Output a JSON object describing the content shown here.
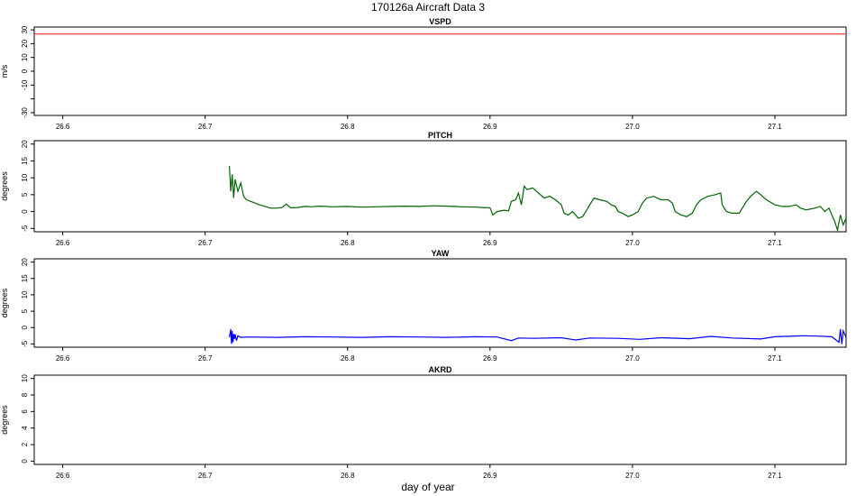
{
  "title": "170126a   Aircraft Data 3",
  "xlabel": "day of year",
  "chart_data": [
    {
      "type": "line",
      "title": "VSPD",
      "ylabel": "m/s",
      "xlim": [
        26.58,
        27.15
      ],
      "ylim": [
        -32,
        32
      ],
      "x_ticks": [
        "26.6",
        "26.7",
        "26.8",
        "26.9",
        "27.0",
        "27.1"
      ],
      "y_ticks": [
        "-30",
        "",
        "-10",
        "0",
        "10",
        "20",
        "30"
      ],
      "series": [
        {
          "color": "#ff2a2a",
          "points": [
            [
              26.58,
              27
            ],
            [
              27.15,
              27
            ]
          ]
        }
      ]
    },
    {
      "type": "line",
      "title": "PITCH",
      "ylabel": "degrees",
      "xlim": [
        26.58,
        27.15
      ],
      "ylim": [
        -6,
        21
      ],
      "x_ticks": [
        "26.6",
        "26.7",
        "26.8",
        "26.9",
        "27.0",
        "27.1"
      ],
      "y_ticks": [
        "-5",
        "0",
        "5",
        "10",
        "15",
        "20"
      ],
      "series": [
        {
          "color": "#006400",
          "points": [
            [
              26.717,
              13.5
            ],
            [
              26.718,
              6
            ],
            [
              26.719,
              11
            ],
            [
              26.72,
              4
            ],
            [
              26.721,
              9.5
            ],
            [
              26.723,
              6
            ],
            [
              26.725,
              8.5
            ],
            [
              26.727,
              4.5
            ],
            [
              26.729,
              3.5
            ],
            [
              26.732,
              3
            ],
            [
              26.735,
              2.5
            ],
            [
              26.738,
              2
            ],
            [
              26.742,
              1.5
            ],
            [
              26.746,
              1
            ],
            [
              26.75,
              1
            ],
            [
              26.754,
              1.2
            ],
            [
              26.757,
              2.2
            ],
            [
              26.76,
              1.1
            ],
            [
              26.765,
              1.2
            ],
            [
              26.77,
              1.5
            ],
            [
              26.775,
              1.4
            ],
            [
              26.78,
              1.6
            ],
            [
              26.79,
              1.4
            ],
            [
              26.8,
              1.5
            ],
            [
              26.81,
              1.3
            ],
            [
              26.82,
              1.4
            ],
            [
              26.83,
              1.5
            ],
            [
              26.84,
              1.6
            ],
            [
              26.85,
              1.5
            ],
            [
              26.86,
              1.7
            ],
            [
              26.87,
              1.6
            ],
            [
              26.88,
              1.4
            ],
            [
              26.89,
              1.3
            ],
            [
              26.895,
              1.2
            ],
            [
              26.9,
              1.1
            ],
            [
              26.902,
              -1
            ],
            [
              26.905,
              0
            ],
            [
              26.91,
              0.4
            ],
            [
              26.913,
              0.2
            ],
            [
              26.915,
              3
            ],
            [
              26.918,
              3.5
            ],
            [
              26.92,
              5.5
            ],
            [
              26.922,
              2
            ],
            [
              26.924,
              7.5
            ],
            [
              26.926,
              6.5
            ],
            [
              26.93,
              7
            ],
            [
              26.934,
              5.5
            ],
            [
              26.938,
              4
            ],
            [
              26.942,
              4.5
            ],
            [
              26.946,
              3.5
            ],
            [
              26.95,
              2
            ],
            [
              26.952,
              -0.5
            ],
            [
              26.955,
              -1
            ],
            [
              26.958,
              0
            ],
            [
              26.96,
              -1
            ],
            [
              26.962,
              -2
            ],
            [
              26.965,
              -1.5
            ],
            [
              26.968,
              0.5
            ],
            [
              26.97,
              2
            ],
            [
              26.973,
              4
            ],
            [
              26.977,
              3.5
            ],
            [
              26.982,
              3
            ],
            [
              26.985,
              2
            ],
            [
              26.988,
              1.5
            ],
            [
              26.99,
              0
            ],
            [
              26.993,
              -0.5
            ],
            [
              26.997,
              -1.5
            ],
            [
              27.0,
              -1
            ],
            [
              27.004,
              0
            ],
            [
              27.007,
              2.5
            ],
            [
              27.01,
              4
            ],
            [
              27.015,
              4.5
            ],
            [
              27.02,
              3.5
            ],
            [
              27.025,
              3.5
            ],
            [
              27.028,
              2.5
            ],
            [
              27.03,
              0
            ],
            [
              27.034,
              -1
            ],
            [
              27.038,
              -1.5
            ],
            [
              27.042,
              -0.5
            ],
            [
              27.045,
              2
            ],
            [
              27.048,
              3.5
            ],
            [
              27.053,
              4.5
            ],
            [
              27.058,
              5
            ],
            [
              27.062,
              5.5
            ],
            [
              27.063,
              2
            ],
            [
              27.066,
              0
            ],
            [
              27.07,
              -0.5
            ],
            [
              27.075,
              -0.5
            ],
            [
              27.08,
              3
            ],
            [
              27.083,
              4.5
            ],
            [
              27.087,
              6
            ],
            [
              27.09,
              5
            ],
            [
              27.094,
              3.5
            ],
            [
              27.1,
              2
            ],
            [
              27.105,
              1.5
            ],
            [
              27.11,
              1.5
            ],
            [
              27.115,
              2
            ],
            [
              27.118,
              1
            ],
            [
              27.122,
              0.5
            ],
            [
              27.128,
              1
            ],
            [
              27.132,
              1.5
            ],
            [
              27.135,
              0
            ],
            [
              27.138,
              1
            ],
            [
              27.14,
              -1
            ],
            [
              27.142,
              -3
            ],
            [
              27.144,
              -5.5
            ],
            [
              27.146,
              -1
            ],
            [
              27.148,
              -4
            ],
            [
              27.15,
              -2
            ]
          ]
        }
      ]
    },
    {
      "type": "line",
      "title": "YAW",
      "ylabel": "degrees",
      "xlim": [
        26.58,
        27.15
      ],
      "ylim": [
        -6,
        21
      ],
      "x_ticks": [
        "26.6",
        "26.7",
        "26.8",
        "26.9",
        "27.0",
        "27.1"
      ],
      "y_ticks": [
        "-5",
        "0",
        "5",
        "10",
        "15",
        "20"
      ],
      "series": [
        {
          "color": "#0000ff",
          "points": [
            [
              26.717,
              -3
            ],
            [
              26.718,
              -0.5
            ],
            [
              26.7185,
              -5
            ],
            [
              26.719,
              -1
            ],
            [
              26.7195,
              -4.5
            ],
            [
              26.72,
              -2
            ],
            [
              26.7205,
              -3.5
            ],
            [
              26.721,
              -2
            ],
            [
              26.722,
              -4
            ],
            [
              26.723,
              -2.5
            ],
            [
              26.725,
              -3
            ],
            [
              26.73,
              -2.9
            ],
            [
              26.75,
              -3
            ],
            [
              26.77,
              -2.8
            ],
            [
              26.79,
              -2.9
            ],
            [
              26.81,
              -3
            ],
            [
              26.83,
              -2.8
            ],
            [
              26.85,
              -2.9
            ],
            [
              26.87,
              -3
            ],
            [
              26.89,
              -2.8
            ],
            [
              26.905,
              -2.9
            ],
            [
              26.915,
              -4
            ],
            [
              26.92,
              -3.2
            ],
            [
              26.93,
              -3.3
            ],
            [
              26.95,
              -3.1
            ],
            [
              26.96,
              -3.8
            ],
            [
              26.97,
              -3.2
            ],
            [
              26.99,
              -3.3
            ],
            [
              27.005,
              -3.6
            ],
            [
              27.02,
              -3.1
            ],
            [
              27.04,
              -3.4
            ],
            [
              27.055,
              -2.7
            ],
            [
              27.07,
              -3.2
            ],
            [
              27.09,
              -3.5
            ],
            [
              27.1,
              -2.8
            ],
            [
              27.12,
              -2.5
            ],
            [
              27.13,
              -2.6
            ],
            [
              27.14,
              -2.8
            ],
            [
              27.145,
              -4.5
            ],
            [
              27.146,
              -0.5
            ],
            [
              27.147,
              -5
            ],
            [
              27.148,
              -1
            ],
            [
              27.15,
              -3
            ]
          ]
        }
      ]
    },
    {
      "type": "line",
      "title": "AKRD",
      "ylabel": "degrees",
      "xlim": [
        26.58,
        27.15
      ],
      "ylim": [
        -0.4,
        10.4
      ],
      "x_ticks": [
        "26.6",
        "26.7",
        "26.8",
        "26.9",
        "27.0",
        "27.1"
      ],
      "y_ticks": [
        "0",
        "2",
        "4",
        "6",
        "8",
        "10"
      ],
      "series": []
    }
  ]
}
